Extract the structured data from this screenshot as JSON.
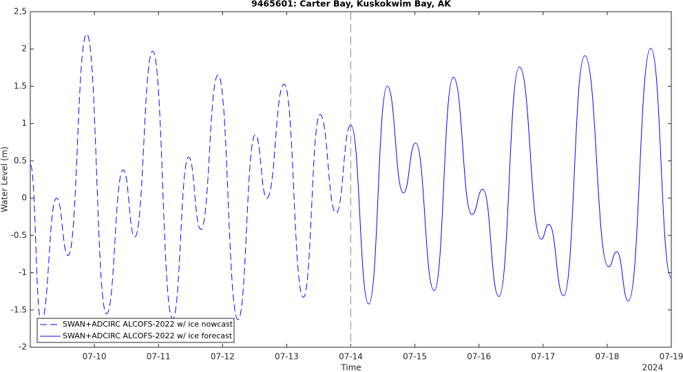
{
  "chart_data": {
    "type": "line",
    "title": "9465601: Carter Bay, Kuskokwim Bay, AK",
    "x_label": "Time",
    "y_label": "Water Level (m)",
    "year_label": "2024",
    "xlim": [
      9,
      19
    ],
    "xticks": [
      {
        "value": 10,
        "label": "07-10"
      },
      {
        "value": 11,
        "label": "07-11"
      },
      {
        "value": 12,
        "label": "07-12"
      },
      {
        "value": 13,
        "label": "07-13"
      },
      {
        "value": 14,
        "label": "07-14"
      },
      {
        "value": 15,
        "label": "07-15"
      },
      {
        "value": 16,
        "label": "07-16"
      },
      {
        "value": 17,
        "label": "07-17"
      },
      {
        "value": 18,
        "label": "07-18"
      },
      {
        "value": 19,
        "label": "07-19"
      }
    ],
    "ylim": [
      -2,
      2.5
    ],
    "yticks": [
      -2,
      -1.5,
      -1,
      -0.5,
      0,
      0.5,
      1,
      1.5,
      2,
      2.5
    ],
    "grid": false,
    "legend": "lower left",
    "series": [
      {
        "name": "SWAN+ADCIRC ALCOFS-2022 w/ ice nowcast",
        "color": "#0000ff",
        "linestyle": "dashed",
        "x": [
          9.0,
          9.17,
          9.41,
          9.59,
          9.88,
          10.19,
          10.45,
          10.63,
          10.91,
          11.22,
          11.47,
          11.66,
          11.93,
          12.24,
          12.51,
          12.69,
          12.96,
          13.26,
          13.52,
          13.77,
          14.0
        ],
        "values": [
          0.45,
          -1.65,
          0.0,
          -0.77,
          2.2,
          -1.55,
          0.38,
          -0.52,
          1.97,
          -1.62,
          0.55,
          -0.42,
          1.65,
          -1.63,
          0.85,
          0.0,
          1.53,
          -1.33,
          1.12,
          -0.2,
          0.98
        ]
      },
      {
        "name": "SWAN+ADCIRC ALCOFS-2022 w/ ice forecast",
        "color": "#0000ff",
        "linestyle": "solid",
        "x": [
          14.0,
          14.28,
          14.57,
          14.82,
          15.01,
          15.3,
          15.6,
          15.89,
          16.06,
          16.31,
          16.63,
          16.97,
          17.09,
          17.32,
          17.65,
          18.02,
          18.15,
          18.33,
          18.68,
          19.0
        ],
        "values": [
          0.98,
          -1.42,
          1.5,
          0.07,
          0.74,
          -1.24,
          1.62,
          -0.22,
          0.12,
          -1.32,
          1.76,
          -0.55,
          -0.35,
          -1.31,
          1.91,
          -0.92,
          -0.72,
          -1.38,
          2.01,
          -1.07
        ]
      }
    ]
  }
}
